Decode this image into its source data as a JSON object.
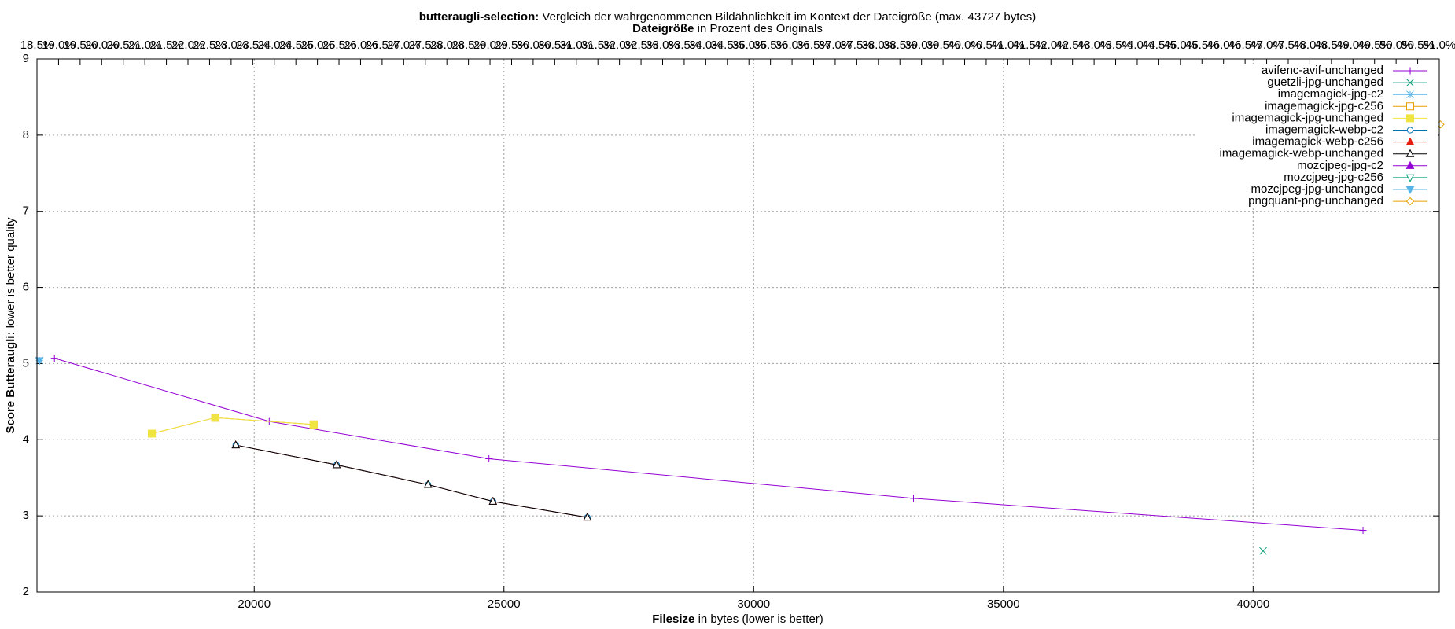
{
  "chart_data": {
    "type": "line",
    "title_bold": "butteraugli-selection:",
    "title": "Vergleich der wahrgenommenen Bildähnlichkeit im Kontext der Dateigröße (max. 43727 bytes)",
    "x2label_bold": "Dateigröße",
    "x2label": "in Prozent des Originals",
    "xlabel_bold": "Filesize",
    "xlabel": "in bytes (lower is better)",
    "ylabel_bold": "Score Butteraugli:",
    "ylabel": "lower is better quality",
    "xlim": [
      15650,
      43727
    ],
    "xticks": [
      20000,
      25000,
      30000,
      35000,
      40000
    ],
    "ylim": [
      2,
      9
    ],
    "yticks": [
      2,
      3,
      4,
      5,
      6,
      7,
      8,
      9
    ],
    "x2lim": [
      18.5,
      51.0
    ],
    "x2ticks": [
      {
        "value": 18.5,
        "label": "18.5%"
      },
      {
        "value": 19.0,
        "label": "19.0%"
      },
      {
        "value": 19.5,
        "label": "19.5%"
      },
      {
        "value": 20.0,
        "label": "20.0%"
      },
      {
        "value": 20.5,
        "label": "20.5%"
      },
      {
        "value": 21.0,
        "label": "21.0%"
      },
      {
        "value": 21.5,
        "label": "21.5%"
      },
      {
        "value": 22.0,
        "label": "22.0%"
      },
      {
        "value": 22.5,
        "label": "22.5%"
      },
      {
        "value": 23.0,
        "label": "23.0%"
      },
      {
        "value": 23.5,
        "label": "23.5%"
      },
      {
        "value": 24.0,
        "label": "24.0%"
      },
      {
        "value": 24.5,
        "label": "24.5%"
      },
      {
        "value": 25.0,
        "label": "25.0%"
      },
      {
        "value": 25.5,
        "label": "25.5%"
      },
      {
        "value": 26.0,
        "label": "26.0%"
      },
      {
        "value": 26.5,
        "label": "26.5%"
      },
      {
        "value": 27.0,
        "label": "27.0%"
      },
      {
        "value": 27.5,
        "label": "27.5%"
      },
      {
        "value": 28.0,
        "label": "28.0%"
      },
      {
        "value": 28.5,
        "label": "28.5%"
      },
      {
        "value": 29.0,
        "label": "29.0%"
      },
      {
        "value": 29.5,
        "label": "29.5%"
      },
      {
        "value": 30.0,
        "label": "30.0%"
      },
      {
        "value": 30.5,
        "label": "30.5%"
      },
      {
        "value": 31.0,
        "label": "31.0%"
      },
      {
        "value": 31.5,
        "label": "31.5%"
      },
      {
        "value": 32.0,
        "label": "32.0%"
      },
      {
        "value": 32.5,
        "label": "32.5%"
      },
      {
        "value": 33.0,
        "label": "33.0%"
      },
      {
        "value": 33.5,
        "label": "33.5%"
      },
      {
        "value": 34.0,
        "label": "34.0%"
      },
      {
        "value": 34.5,
        "label": "34.5%"
      },
      {
        "value": 35.0,
        "label": "35.0%"
      },
      {
        "value": 35.5,
        "label": "35.5%"
      },
      {
        "value": 36.0,
        "label": "36.0%"
      },
      {
        "value": 36.5,
        "label": "36.5%"
      },
      {
        "value": 37.0,
        "label": "37.0%"
      },
      {
        "value": 37.5,
        "label": "37.5%"
      },
      {
        "value": 38.0,
        "label": "38.0%"
      },
      {
        "value": 38.5,
        "label": "38.5%"
      },
      {
        "value": 39.0,
        "label": "39.0%"
      },
      {
        "value": 39.5,
        "label": "39.5%"
      },
      {
        "value": 40.0,
        "label": "40.0%"
      },
      {
        "value": 40.5,
        "label": "40.5%"
      },
      {
        "value": 41.0,
        "label": "41.0%"
      },
      {
        "value": 41.5,
        "label": "41.5%"
      },
      {
        "value": 42.0,
        "label": "42.0%"
      },
      {
        "value": 42.5,
        "label": "42.5%"
      },
      {
        "value": 43.0,
        "label": "43.0%"
      },
      {
        "value": 43.5,
        "label": "43.5%"
      },
      {
        "value": 44.0,
        "label": "44.0%"
      },
      {
        "value": 44.5,
        "label": "44.5%"
      },
      {
        "value": 45.0,
        "label": "45.0%"
      },
      {
        "value": 45.5,
        "label": "45.5%"
      },
      {
        "value": 46.0,
        "label": "46.0%"
      },
      {
        "value": 46.5,
        "label": "46.5%"
      },
      {
        "value": 47.0,
        "label": "47.0%"
      },
      {
        "value": 47.5,
        "label": "47.5%"
      },
      {
        "value": 48.0,
        "label": "48.0%"
      },
      {
        "value": 48.5,
        "label": "48.5%"
      },
      {
        "value": 49.0,
        "label": "49.0%"
      },
      {
        "value": 49.5,
        "label": "49.5%"
      },
      {
        "value": 50.0,
        "label": "50.0%"
      },
      {
        "value": 50.5,
        "label": "50.5%"
      },
      {
        "value": 51.0,
        "label": "51.0%"
      }
    ],
    "grid": true,
    "legend": "top-right",
    "series": [
      {
        "name": "avifenc-avif-unchanged",
        "color": "#9400d3",
        "marker": "plus",
        "x": [
          16000,
          20300,
          24700,
          33200,
          42200
        ],
        "values": [
          5.07,
          4.24,
          3.75,
          3.23,
          2.81
        ]
      },
      {
        "name": "guetzli-jpg-unchanged",
        "color": "#009e73",
        "marker": "cross",
        "x": [
          40200
        ],
        "values": [
          2.54
        ]
      },
      {
        "name": "imagemagick-jpg-c2",
        "color": "#56b4e9",
        "marker": "star",
        "x": [
          15700
        ],
        "values": [
          5.04
        ]
      },
      {
        "name": "imagemagick-jpg-c256",
        "color": "#e69f00",
        "marker": "square-open",
        "x": [
          17950,
          19220,
          21190
        ],
        "values": [
          4.08,
          4.29,
          4.2
        ]
      },
      {
        "name": "imagemagick-jpg-unchanged",
        "color": "#f0e442",
        "marker": "square",
        "x": [
          17950,
          19220,
          21190
        ],
        "values": [
          4.08,
          4.29,
          4.2
        ]
      },
      {
        "name": "imagemagick-webp-c2",
        "color": "#0072b2",
        "marker": "circle-open",
        "x": [
          19630,
          21650,
          23480,
          24780,
          26670
        ],
        "values": [
          3.93,
          3.67,
          3.41,
          3.19,
          2.98
        ]
      },
      {
        "name": "imagemagick-webp-c256",
        "color": "#e51e10",
        "marker": "triangle",
        "x": [
          19630,
          21650,
          23480,
          24780,
          26670
        ],
        "values": [
          3.93,
          3.67,
          3.41,
          3.19,
          2.98
        ]
      },
      {
        "name": "imagemagick-webp-unchanged",
        "color": "#000000",
        "marker": "triangle-open",
        "x": [
          19630,
          21650,
          23480,
          24780,
          26670
        ],
        "values": [
          3.93,
          3.67,
          3.41,
          3.19,
          2.98
        ]
      },
      {
        "name": "mozcjpeg-jpg-c2",
        "color": "#9400d3",
        "marker": "triangle",
        "x": [],
        "values": []
      },
      {
        "name": "mozcjpeg-jpg-c256",
        "color": "#009e73",
        "marker": "down-open",
        "x": [],
        "values": []
      },
      {
        "name": "mozcjpeg-jpg-unchanged",
        "color": "#56b4e9",
        "marker": "down",
        "x": [
          15700
        ],
        "values": [
          5.04
        ]
      },
      {
        "name": "pngquant-png-unchanged",
        "color": "#e69f00",
        "marker": "diamond-open",
        "x": [
          43750
        ],
        "values": [
          8.14
        ]
      }
    ]
  }
}
